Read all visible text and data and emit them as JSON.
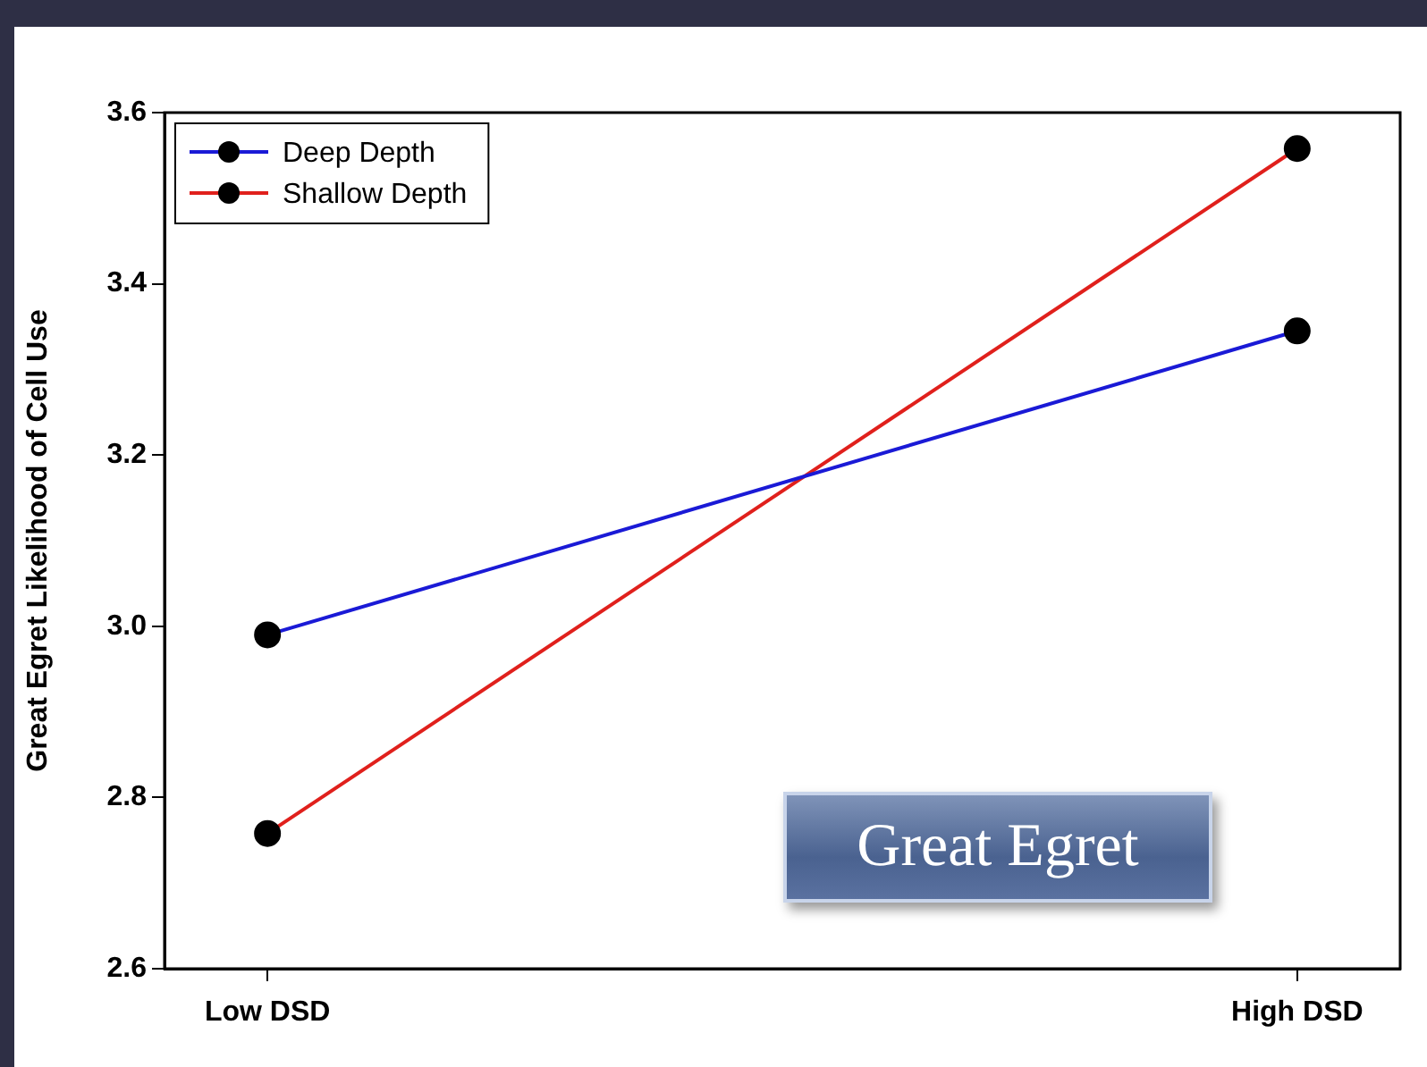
{
  "chart_data": {
    "type": "line",
    "ylabel": "Great Egret Likelihood of Cell Use",
    "categories": [
      "Low DSD",
      "High DSD"
    ],
    "series": [
      {
        "name": "Deep Depth",
        "color": "#1a1ad6",
        "values": [
          2.99,
          3.345
        ]
      },
      {
        "name": "Shallow Depth",
        "color": "#e0201c",
        "values": [
          2.758,
          3.558
        ]
      }
    ],
    "ylim": [
      2.6,
      3.6
    ],
    "yticks": [
      2.6,
      2.8,
      {
        "value": 3.0,
        "label": "3.0"
      },
      3.2,
      3.4,
      3.6
    ],
    "grid": false,
    "legend": "top left",
    "marker": "circle",
    "line_style": "solid",
    "annotations": [
      "Great Egret"
    ]
  }
}
